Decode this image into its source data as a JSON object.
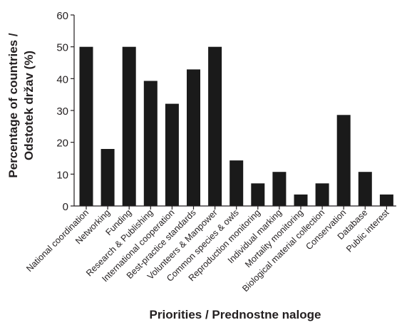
{
  "chart_data": {
    "type": "bar",
    "xlabel": "Priorities / Prednostne naloge",
    "ylabel_lines": [
      "Percentage of countries /",
      "Odstotek držav (%)"
    ],
    "ylim": [
      0,
      60
    ],
    "yticks": [
      0,
      10,
      20,
      30,
      40,
      50,
      60
    ],
    "grid": false,
    "bar_color": "#1a1a1a",
    "categories": [
      "National coordination",
      "Networking",
      "Funding",
      "Research & Publishing",
      "International cooperation",
      "Best-practice standards",
      "Volunteers & Manpower",
      "Common species &  owls",
      "Reproduction monitoring",
      "Individual marking",
      "Mortality monitoring",
      "Biological material collection",
      "Conservation",
      "Database",
      "Public interest"
    ],
    "values": [
      50,
      17.9,
      50,
      39.3,
      32.1,
      42.9,
      50,
      14.3,
      7.1,
      10.7,
      3.6,
      7.1,
      28.6,
      10.7,
      3.6
    ]
  }
}
